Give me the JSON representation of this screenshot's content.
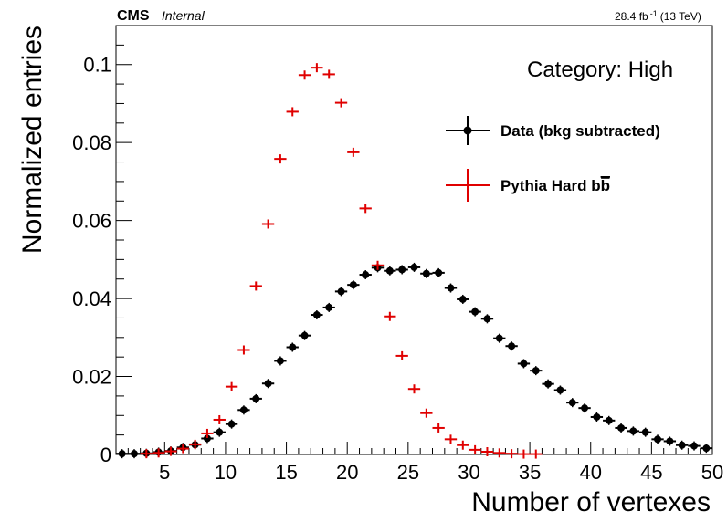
{
  "header": {
    "experiment": "CMS",
    "status": "Internal",
    "lumi_value": "28.4 fb",
    "lumi_exp": "-1",
    "energy": "(13 TeV)"
  },
  "annotation": "Category: High",
  "chart_data": {
    "type": "scatter",
    "xlabel": "Number of vertexes",
    "ylabel": "Normalized entries",
    "xlim": [
      1,
      50
    ],
    "ylim": [
      0,
      0.11
    ],
    "xticks": [
      5,
      10,
      15,
      20,
      25,
      30,
      35,
      40,
      45,
      50
    ],
    "yticks": [
      0,
      0.02,
      0.04,
      0.06,
      0.08,
      0.1
    ],
    "ytick_labels": [
      "0",
      "0.02",
      "0.04",
      "0.06",
      "0.08",
      "0.1"
    ],
    "grid": false,
    "legend_position": "top-right",
    "legend_labels": {
      "pythia_main": "Pythia Hard b",
      "pythia_bar": "b"
    },
    "series": [
      {
        "name": "Data (bkg subtracted)",
        "color": "#000000",
        "marker": "circle",
        "x": [
          1.5,
          2.5,
          3.5,
          4.5,
          5.5,
          6.5,
          7.5,
          8.5,
          9.5,
          10.5,
          11.5,
          12.5,
          13.5,
          14.5,
          15.5,
          16.5,
          17.5,
          18.5,
          19.5,
          20.5,
          21.5,
          22.5,
          23.5,
          24.5,
          25.5,
          26.5,
          27.5,
          28.5,
          29.5,
          30.5,
          31.5,
          32.5,
          33.5,
          34.5,
          35.5,
          36.5,
          37.5,
          38.5,
          39.5,
          40.5,
          41.5,
          42.5,
          43.5,
          44.5,
          45.5,
          46.5,
          47.5,
          48.5,
          49.5
        ],
        "y": [
          0.0002,
          0.0002,
          0.0003,
          0.0006,
          0.0009,
          0.0018,
          0.0025,
          0.0041,
          0.0057,
          0.0078,
          0.0114,
          0.0143,
          0.0182,
          0.024,
          0.0275,
          0.0305,
          0.0358,
          0.0377,
          0.0418,
          0.0435,
          0.0461,
          0.0479,
          0.0471,
          0.0474,
          0.048,
          0.0464,
          0.0466,
          0.0427,
          0.0398,
          0.0366,
          0.0348,
          0.0298,
          0.0278,
          0.0233,
          0.0215,
          0.0181,
          0.0165,
          0.0133,
          0.0119,
          0.0096,
          0.0087,
          0.0068,
          0.006,
          0.0057,
          0.0039,
          0.0034,
          0.0024,
          0.0022,
          0.0016
        ]
      },
      {
        "name": "Pythia Hard bb",
        "color": "#e00000",
        "marker": "cross",
        "x": [
          3.5,
          4.5,
          5.5,
          6.5,
          7.5,
          8.5,
          9.5,
          10.5,
          11.5,
          12.5,
          13.5,
          14.5,
          15.5,
          16.5,
          17.5,
          18.5,
          19.5,
          20.5,
          21.5,
          22.5,
          23.5,
          24.5,
          25.5,
          26.5,
          27.5,
          28.5,
          29.5,
          30.5,
          31.5,
          32.5,
          33.5,
          34.5,
          35.5
        ],
        "y": [
          0.0002,
          0.0004,
          0.0008,
          0.0015,
          0.0026,
          0.0054,
          0.0089,
          0.0174,
          0.0268,
          0.0432,
          0.0591,
          0.0758,
          0.0879,
          0.0973,
          0.0992,
          0.0975,
          0.0902,
          0.0775,
          0.0631,
          0.0485,
          0.0354,
          0.0253,
          0.0168,
          0.0106,
          0.0068,
          0.0039,
          0.0024,
          0.0012,
          0.0007,
          0.0004,
          0.0002,
          0.0001,
          0.0001
        ]
      }
    ]
  }
}
